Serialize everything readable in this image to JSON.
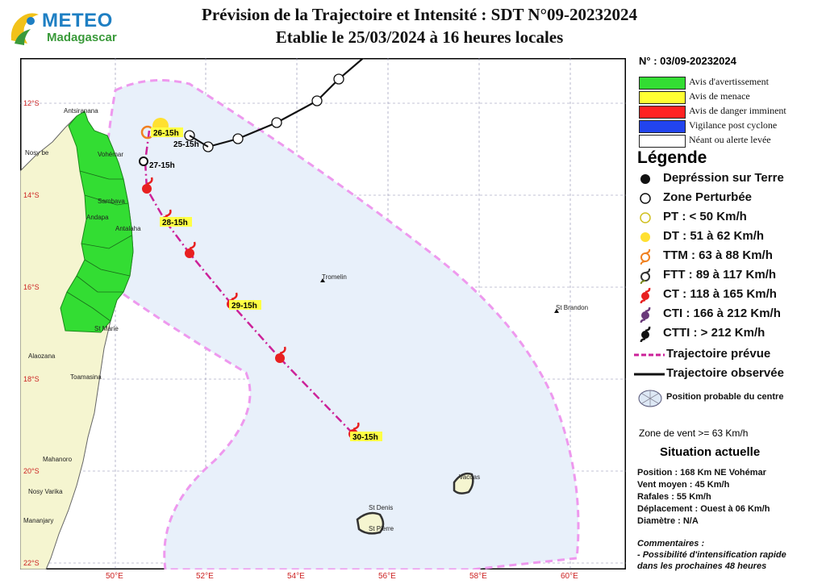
{
  "title": {
    "line1": "Prévision de la Trajectoire et Intensité : SDT N°09-20232024",
    "line2": "Etablie le 25/03/2024 à 16 heures locales"
  },
  "logo": {
    "main": "METEO",
    "sub": "Madagascar"
  },
  "map": {
    "lat_labels": [
      "12°S",
      "14°S",
      "16°S",
      "18°S",
      "20°S",
      "22°S"
    ],
    "lon_labels": [
      "50°E",
      "52°E",
      "54°E",
      "56°E",
      "58°E",
      "60°E"
    ],
    "places": [
      "Antsiranana",
      "Nosy be",
      "Vohémar",
      "Sambava",
      "Andapa",
      "Antalaha",
      "St Marie",
      "Alaozana",
      "Toamasina",
      "Mahanoro",
      "Nosy Varika",
      "Mananjary",
      "Tromelin",
      "St Brandon",
      "St Denis",
      "St Pierre",
      "Vacoas"
    ],
    "forecast_labels": [
      "26-15h",
      "25-15h",
      "27-15h",
      "28-15h",
      "29-15h",
      "30-15h"
    ],
    "colors": {
      "warning_green": "#33dd33",
      "forecast_track": "#cc2299",
      "cone": "#ee99ee",
      "cyclone_red": "#e82020"
    }
  },
  "panel": {
    "bulletin_number": "N° : 03/09-20232024",
    "warnings": [
      {
        "label": "Avis d'avertissement",
        "color": "#33dd33"
      },
      {
        "label": "Avis de menace",
        "color": "#ffff33"
      },
      {
        "label": "Avis de danger imminent",
        "color": "#ff2222"
      },
      {
        "label": "Vigilance post cyclone",
        "color": "#2244ee"
      },
      {
        "label": "Néant ou alerte levée",
        "color": "#ffffff"
      }
    ],
    "legend_title": "Légende",
    "legend": [
      {
        "label": "Depréssion sur Terre",
        "icon": "filled-black-dot-icon"
      },
      {
        "label": "Zone Perturbée",
        "icon": "open-circle-icon"
      },
      {
        "label": "PT : < 50 Km/h",
        "icon": "open-yellow-circle-icon"
      },
      {
        "label": "DT : 51 à 62 Km/h",
        "icon": "yellow-dot-icon"
      },
      {
        "label": "TTM : 63 à 88 Km/h",
        "icon": "orange-cyclone-icon"
      },
      {
        "label": "FTT : 89 à 117 Km/h",
        "icon": "dark-cyclone-outline-icon"
      },
      {
        "label": "CT : 118 à 165 Km/h",
        "icon": "red-cyclone-icon"
      },
      {
        "label": "CTI : 166 à 212 Km/h",
        "icon": "purple-cyclone-icon"
      },
      {
        "label": "CTTI : > 212 Km/h",
        "icon": "black-cyclone-icon"
      }
    ],
    "track_forecast_label": "Trajectoire prévue",
    "track_observed_label": "Trajectoire observée",
    "probable_position_label": "Position probable du centre",
    "wind_zone_label": "Zone de vent >= 63 Km/h",
    "situation_title": "Situation actuelle",
    "situation": [
      "Position : 168 Km NE Vohémar",
      "Vent moyen : 45 Km/h",
      "Rafales : 55 Km/h",
      "Déplacement : Ouest à 06 Km/h",
      "Diamètre : N/A"
    ],
    "comments_title": "Commentaires :",
    "comments": [
      "- Possibilité d'intensification rapide",
      "dans les prochaines 48 heures"
    ]
  }
}
